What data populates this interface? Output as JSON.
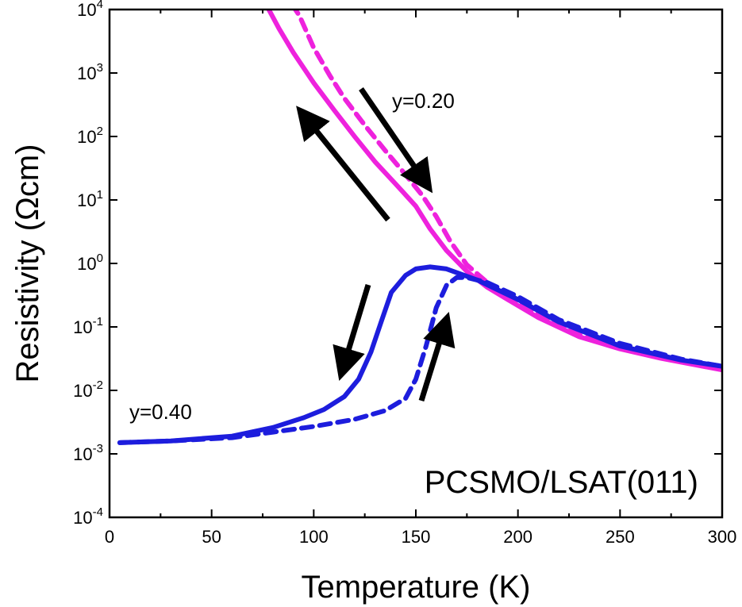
{
  "chart_data": {
    "type": "line",
    "xlabel": "Temperature (K)",
    "ylabel": "Resistivity (Ωcm)",
    "xlim": [
      0,
      300
    ],
    "ylim": [
      0.0001,
      10000
    ],
    "yscale": "log",
    "x_ticks": [
      0,
      50,
      100,
      150,
      200,
      250,
      300
    ],
    "y_ticks": [
      {
        "value": 0.0001,
        "base": "10",
        "exp": "-4"
      },
      {
        "value": 0.001,
        "base": "10",
        "exp": "-3"
      },
      {
        "value": 0.01,
        "base": "10",
        "exp": "-2"
      },
      {
        "value": 0.1,
        "base": "10",
        "exp": "-1"
      },
      {
        "value": 1,
        "base": "10",
        "exp": "0"
      },
      {
        "value": 10,
        "base": "10",
        "exp": "1"
      },
      {
        "value": 100,
        "base": "10",
        "exp": "2"
      },
      {
        "value": 1000,
        "base": "10",
        "exp": "3"
      },
      {
        "value": 10000,
        "base": "10",
        "exp": "4"
      }
    ],
    "grid": false,
    "series": [
      {
        "color": "#ee22dd",
        "style": "solid",
        "points": [
          [
            300,
            0.021
          ],
          [
            270,
            0.032
          ],
          [
            250,
            0.045
          ],
          [
            230,
            0.07
          ],
          [
            210,
            0.14
          ],
          [
            195,
            0.27
          ],
          [
            185,
            0.42
          ],
          [
            175,
            0.75
          ],
          [
            165,
            1.6
          ],
          [
            157,
            3.5
          ],
          [
            150,
            8
          ],
          [
            140,
            18
          ],
          [
            130,
            40
          ],
          [
            120,
            100
          ],
          [
            110,
            260
          ],
          [
            100,
            700
          ],
          [
            90,
            2100
          ],
          [
            83,
            5000
          ],
          [
            78,
            10000
          ]
        ]
      },
      {
        "color": "#ee22dd",
        "style": "dashed",
        "points": [
          [
            300,
            0.022
          ],
          [
            270,
            0.034
          ],
          [
            250,
            0.047
          ],
          [
            230,
            0.075
          ],
          [
            210,
            0.16
          ],
          [
            195,
            0.3
          ],
          [
            185,
            0.5
          ],
          [
            175,
            0.95
          ],
          [
            167,
            2.2
          ],
          [
            160,
            5.5
          ],
          [
            153,
            12
          ],
          [
            145,
            25
          ],
          [
            135,
            60
          ],
          [
            125,
            150
          ],
          [
            115,
            400
          ],
          [
            108,
            900
          ],
          [
            100,
            2500
          ],
          [
            93,
            8000
          ],
          [
            91,
            10000
          ]
        ]
      },
      {
        "color": "#1d1ddd",
        "style": "solid",
        "points": [
          [
            5,
            0.0015
          ],
          [
            30,
            0.0016
          ],
          [
            60,
            0.0019
          ],
          [
            80,
            0.0026
          ],
          [
            95,
            0.0037
          ],
          [
            105,
            0.005
          ],
          [
            115,
            0.008
          ],
          [
            122,
            0.015
          ],
          [
            128,
            0.04
          ],
          [
            133,
            0.12
          ],
          [
            138,
            0.35
          ],
          [
            145,
            0.65
          ],
          [
            150,
            0.82
          ],
          [
            157,
            0.88
          ],
          [
            165,
            0.82
          ],
          [
            180,
            0.55
          ],
          [
            200,
            0.27
          ],
          [
            220,
            0.12
          ],
          [
            250,
            0.05
          ],
          [
            280,
            0.03
          ],
          [
            300,
            0.024
          ]
        ]
      },
      {
        "color": "#1d1ddd",
        "style": "dashed",
        "points": [
          [
            5,
            0.0015
          ],
          [
            30,
            0.0016
          ],
          [
            60,
            0.0018
          ],
          [
            80,
            0.0022
          ],
          [
            100,
            0.0027
          ],
          [
            120,
            0.0035
          ],
          [
            135,
            0.0048
          ],
          [
            145,
            0.0075
          ],
          [
            150,
            0.015
          ],
          [
            155,
            0.05
          ],
          [
            160,
            0.2
          ],
          [
            165,
            0.45
          ],
          [
            170,
            0.6
          ],
          [
            175,
            0.6
          ],
          [
            185,
            0.5
          ],
          [
            200,
            0.3
          ],
          [
            220,
            0.13
          ],
          [
            250,
            0.055
          ],
          [
            280,
            0.031
          ],
          [
            300,
            0.024
          ]
        ]
      }
    ],
    "annotations": {
      "label_upper": "y=0.20",
      "label_lower": "y=0.40",
      "sample": "PCSMO/LSAT(011)"
    }
  }
}
